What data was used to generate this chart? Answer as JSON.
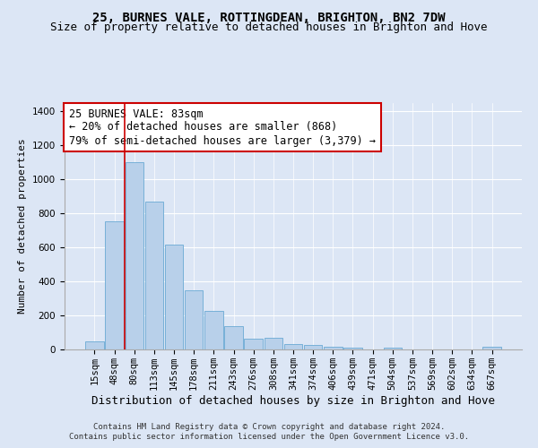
{
  "title": "25, BURNES VALE, ROTTINGDEAN, BRIGHTON, BN2 7DW",
  "subtitle": "Size of property relative to detached houses in Brighton and Hove",
  "xlabel": "Distribution of detached houses by size in Brighton and Hove",
  "ylabel": "Number of detached properties",
  "footnote1": "Contains HM Land Registry data © Crown copyright and database right 2024.",
  "footnote2": "Contains public sector information licensed under the Open Government Licence v3.0.",
  "annotation_title": "25 BURNES VALE: 83sqm",
  "annotation_line1": "← 20% of detached houses are smaller (868)",
  "annotation_line2": "79% of semi-detached houses are larger (3,379) →",
  "bar_labels": [
    "15sqm",
    "48sqm",
    "80sqm",
    "113sqm",
    "145sqm",
    "178sqm",
    "211sqm",
    "243sqm",
    "276sqm",
    "308sqm",
    "341sqm",
    "374sqm",
    "406sqm",
    "439sqm",
    "471sqm",
    "504sqm",
    "537sqm",
    "569sqm",
    "602sqm",
    "634sqm",
    "667sqm"
  ],
  "bar_values": [
    50,
    755,
    1100,
    870,
    615,
    350,
    225,
    135,
    65,
    70,
    30,
    28,
    18,
    12,
    0,
    12,
    0,
    0,
    0,
    0,
    15
  ],
  "bar_color": "#b8d0ea",
  "bar_edge_color": "#6aaad4",
  "vline_index": 2,
  "vline_color": "#cc0000",
  "ylim": [
    0,
    1450
  ],
  "yticks": [
    0,
    200,
    400,
    600,
    800,
    1000,
    1200,
    1400
  ],
  "bg_color": "#dce6f5",
  "plot_bg_color": "#dce6f5",
  "annotation_box_facecolor": "#ffffff",
  "annotation_box_edgecolor": "#cc0000",
  "title_fontsize": 10,
  "subtitle_fontsize": 9,
  "xlabel_fontsize": 9,
  "ylabel_fontsize": 8,
  "tick_fontsize": 7.5,
  "annotation_fontsize": 8.5,
  "footnote_fontsize": 6.5
}
